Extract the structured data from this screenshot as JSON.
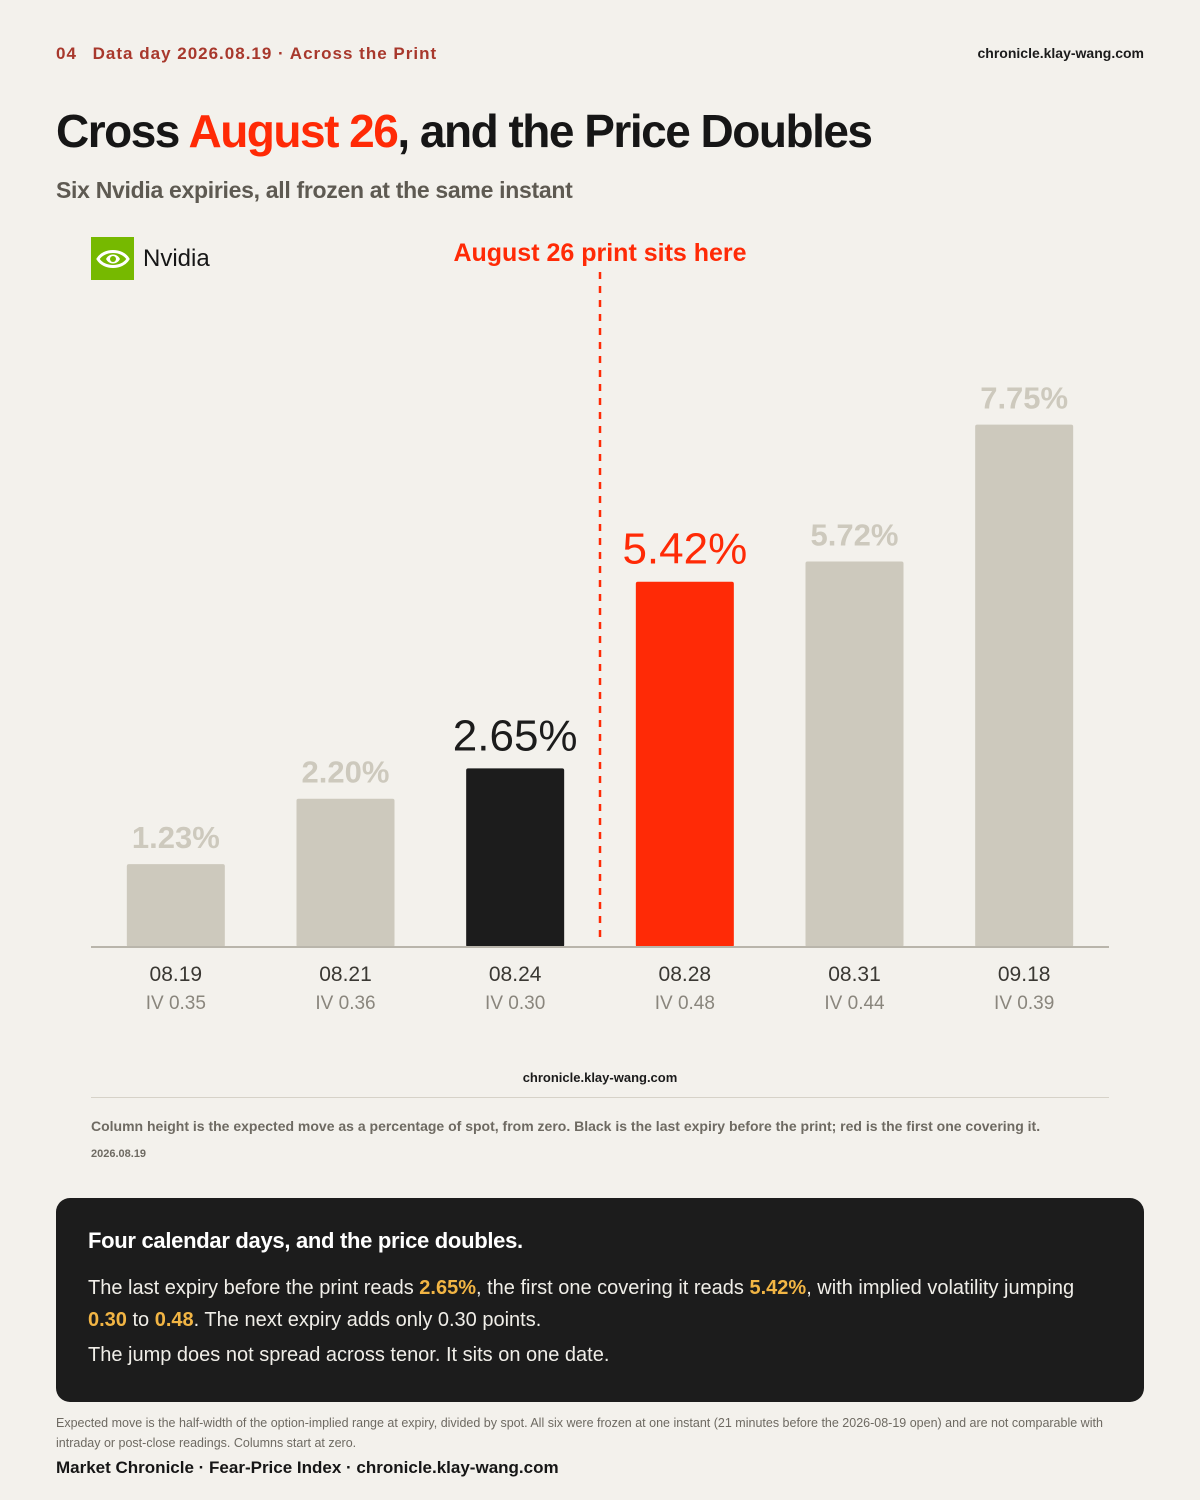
{
  "header": {
    "issue_number": "04",
    "kicker": "Data day 2026.08.19 · Across the Print",
    "site": "chronicle.klay-wang.com"
  },
  "title": {
    "before": "Cross ",
    "highlight": "August 26",
    "after": ", and the Price Doubles"
  },
  "subtitle": "Six Nvidia expiries, all frozen at the same instant",
  "brand": {
    "name": "Nvidia",
    "icon": "nvidia-eye-logo",
    "color": "#76b900"
  },
  "chart_data": {
    "type": "bar",
    "categories": [
      "08.19",
      "08.21",
      "08.24",
      "08.28",
      "08.31",
      "09.18"
    ],
    "sublabels": [
      "IV 0.35",
      "IV 0.36",
      "IV 0.30",
      "IV 0.48",
      "IV 0.44",
      "IV 0.39"
    ],
    "values": [
      1.23,
      2.2,
      2.65,
      5.42,
      5.72,
      7.75
    ],
    "value_labels": [
      "1.23%",
      "2.20%",
      "2.65%",
      "5.42%",
      "5.72%",
      "7.75%"
    ],
    "ylim": [
      0,
      9.6
    ],
    "colors": [
      "#cdc9bd",
      "#cdc9bd",
      "#1c1c1c",
      "#ff2a06",
      "#cdc9bd",
      "#cdc9bd"
    ],
    "label_colors": [
      "#cdc9bd",
      "#cdc9bd",
      "#1c1c1c",
      "#ff2a06",
      "#cdc9bd",
      "#cdc9bd"
    ],
    "emphasized": [
      false,
      false,
      true,
      true,
      false,
      false
    ],
    "annotation": {
      "text": "August 26 print sits here",
      "between_categories": [
        "08.24",
        "08.28"
      ],
      "color": "#ff2a06",
      "style": "dashed vertical line"
    },
    "grid": false,
    "title": "",
    "xlabel": "",
    "ylabel": ""
  },
  "chart_footer": {
    "site": "chronicle.klay-wang.com",
    "note": "Column height is the expected move as a percentage of spot, from zero. Black is the last expiry before the print; red is the first one covering it.",
    "date": "2026.08.19"
  },
  "callout": {
    "heading": "Four calendar days, and the price doubles.",
    "p1_a": "The last expiry before the print reads ",
    "p1_v1": "2.65%",
    "p1_b": ", the first one covering it reads ",
    "p1_v2": "5.42%",
    "p1_c": ", with implied volatility jumping ",
    "p1_v3": "0.30",
    "p1_d": " to ",
    "p1_v4": "0.48",
    "p1_e": ". The next expiry adds only 0.30 points.",
    "p2": "The jump does not spread across tenor. It sits on one date.",
    "highlight_color": "#f2b544"
  },
  "footnote": "Expected move is the half-width of the option-implied range at expiry, divided by spot. All six were frozen at one instant (21 minutes before the 2026-08-19 open) and are not comparable with intraday or post-close readings. Columns start at zero.",
  "footer": "Market Chronicle · Fear-Price Index · chronicle.klay-wang.com"
}
